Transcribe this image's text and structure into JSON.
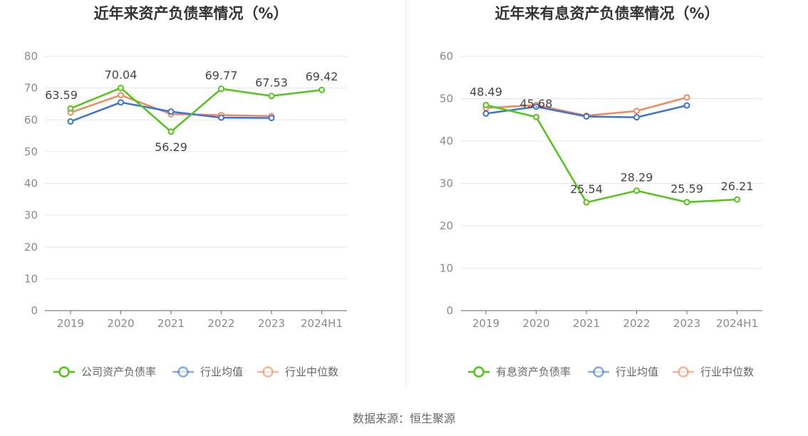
{
  "source_text": "数据来源：恒生聚源",
  "colors": {
    "company": "#52c41a",
    "average": "#3b72d9",
    "median": "#f08a5d",
    "grid": "#e6e6e6",
    "axis": "#666666"
  },
  "chart_data": [
    {
      "type": "line",
      "title": "近年来资产负债率情况（%）",
      "categories": [
        "2019",
        "2020",
        "2021",
        "2022",
        "2023",
        "2024H1"
      ],
      "ylim": [
        0,
        80
      ],
      "yticks": [
        0,
        10,
        20,
        30,
        40,
        50,
        60,
        70,
        80
      ],
      "grid": true,
      "legend_position": "bottom",
      "series": [
        {
          "name": "公司资产负债率",
          "color": "#52c41a",
          "values": [
            63.59,
            70.04,
            56.29,
            69.77,
            67.53,
            69.42
          ],
          "labels": [
            "63.59",
            "70.04",
            "56.29",
            "69.77",
            "67.53",
            "69.42"
          ]
        },
        {
          "name": "行业均值",
          "color": "#3b72d9",
          "values": [
            59.5,
            65.5,
            62.6,
            60.7,
            60.6,
            null
          ]
        },
        {
          "name": "行业中位数",
          "color": "#f08a5d",
          "values": [
            62.3,
            67.8,
            61.8,
            61.5,
            61.2,
            null
          ]
        }
      ]
    },
    {
      "type": "line",
      "title": "近年来有息资产负债率情况（%）",
      "categories": [
        "2019",
        "2020",
        "2021",
        "2022",
        "2023",
        "2024H1"
      ],
      "ylim": [
        0,
        60
      ],
      "yticks": [
        0,
        10,
        20,
        30,
        40,
        50,
        60
      ],
      "grid": true,
      "legend_position": "bottom",
      "series": [
        {
          "name": "有息资产负债率",
          "color": "#52c41a",
          "values": [
            48.49,
            45.68,
            25.54,
            28.29,
            25.59,
            26.21
          ],
          "labels": [
            "48.49",
            "45.68",
            "25.54",
            "28.29",
            "25.59",
            "26.21"
          ]
        },
        {
          "name": "行业均值",
          "color": "#3b72d9",
          "values": [
            46.5,
            48.1,
            45.8,
            45.6,
            48.4,
            null
          ]
        },
        {
          "name": "行业中位数",
          "color": "#f08a5d",
          "values": [
            47.8,
            48.5,
            46.0,
            47.1,
            50.3,
            null
          ]
        }
      ]
    }
  ]
}
